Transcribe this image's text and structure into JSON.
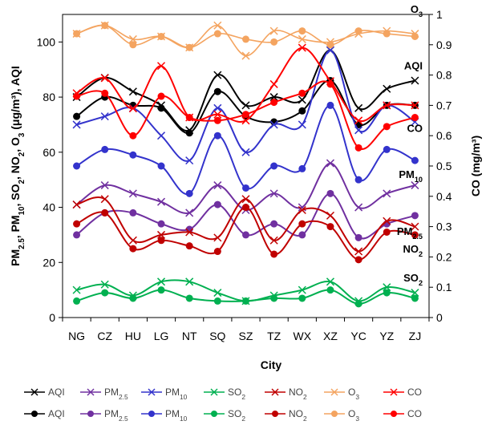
{
  "chart_data": {
    "type": "line",
    "xlabel": "City",
    "ylabel_left": "PM2.5, PM10, SO2, NO2, O3 (μg/m³), AQI",
    "ylabel_right": "CO (mg/m³)",
    "ylim_left": [
      0,
      110
    ],
    "yticks_left": [
      "0",
      "20",
      "40",
      "60",
      "80",
      "100"
    ],
    "ylim_right": [
      0,
      1
    ],
    "yticks_right": [
      "0",
      "0.1",
      "0.2",
      "0.3",
      "0.4",
      "0.5",
      "0.6",
      "0.7",
      "0.8",
      "0.9",
      "1"
    ],
    "categories": [
      "NG",
      "CZ",
      "HU",
      "LG",
      "NT",
      "SQ",
      "SZ",
      "TZ",
      "WX",
      "XZ",
      "YC",
      "YZ",
      "ZJ"
    ],
    "series": [
      {
        "name": "AQI",
        "key": "aqi",
        "color": "#000000",
        "axis": "left",
        "cross": [
          80,
          87,
          82,
          77,
          68,
          88,
          77,
          80,
          79,
          97,
          76,
          83,
          86
        ],
        "dot": [
          73,
          80,
          77,
          76,
          67,
          82,
          73,
          71,
          75,
          86,
          70,
          77,
          77
        ]
      },
      {
        "name": "PM2.5",
        "key": "pm25",
        "color": "#7030A0",
        "axis": "left",
        "cross": [
          41,
          48,
          45,
          42,
          38,
          48,
          39,
          45,
          40,
          56,
          40,
          45,
          48
        ],
        "dot": [
          30,
          38,
          38,
          34,
          32,
          41,
          30,
          34,
          30,
          45,
          29,
          34,
          37
        ]
      },
      {
        "name": "PM10",
        "key": "pm10",
        "color": "#3333CC",
        "axis": "left",
        "cross": [
          70,
          73,
          76,
          66,
          57,
          76,
          60,
          70,
          70,
          97,
          68,
          77,
          71
        ],
        "dot": [
          55,
          61,
          59,
          55,
          45,
          66,
          47,
          55,
          54,
          77,
          50,
          61,
          57
        ]
      },
      {
        "name": "SO2",
        "key": "so2",
        "color": "#00B050",
        "axis": "left",
        "cross": [
          10,
          12,
          8,
          13,
          13,
          9,
          6,
          8,
          10,
          13,
          6,
          11,
          9
        ],
        "dot": [
          6,
          9,
          7,
          10,
          7,
          6,
          6,
          7,
          7,
          10,
          5,
          9,
          7
        ]
      },
      {
        "name": "NO2",
        "key": "no2",
        "color": "#C00000",
        "axis": "left",
        "cross": [
          41,
          43,
          28,
          30,
          31,
          29,
          43,
          28,
          39,
          37,
          24,
          35,
          33
        ],
        "dot": [
          34,
          38,
          25,
          28,
          26,
          24,
          40,
          23,
          34,
          33,
          21,
          31,
          30
        ]
      },
      {
        "name": "O3",
        "key": "o3",
        "color": "#F4A460",
        "axis": "left",
        "cross": [
          103,
          106,
          101,
          102,
          98,
          106,
          95,
          104,
          101,
          100,
          103,
          104,
          103
        ],
        "dot": [
          103,
          106,
          99,
          102,
          98,
          103,
          101,
          100,
          104,
          99,
          104,
          103,
          102
        ]
      },
      {
        "name": "CO",
        "key": "co",
        "color": "#FF0000",
        "axis": "right",
        "cross": [
          0.74,
          0.79,
          0.69,
          0.83,
          0.66,
          0.67,
          0.65,
          0.77,
          0.89,
          0.78,
          0.65,
          0.7,
          0.7
        ],
        "dot": [
          0.73,
          0.74,
          0.6,
          0.73,
          0.66,
          0.65,
          0.67,
          0.71,
          0.74,
          0.77,
          0.56,
          0.63,
          0.66
        ]
      }
    ],
    "inline_labels": [
      {
        "key": "o3",
        "text": "O",
        "sub": "3"
      },
      {
        "key": "aqi",
        "text": "AQI",
        "sub": ""
      },
      {
        "key": "co",
        "text": "CO",
        "sub": ""
      },
      {
        "key": "pm10",
        "text": "PM",
        "sub": "10"
      },
      {
        "key": "pm25",
        "text": "PM",
        "sub": "2.5"
      },
      {
        "key": "no2",
        "text": "NO",
        "sub": "2"
      },
      {
        "key": "so2",
        "text": "SO",
        "sub": "2"
      }
    ],
    "legend_placement": "bottom",
    "grid": false
  }
}
